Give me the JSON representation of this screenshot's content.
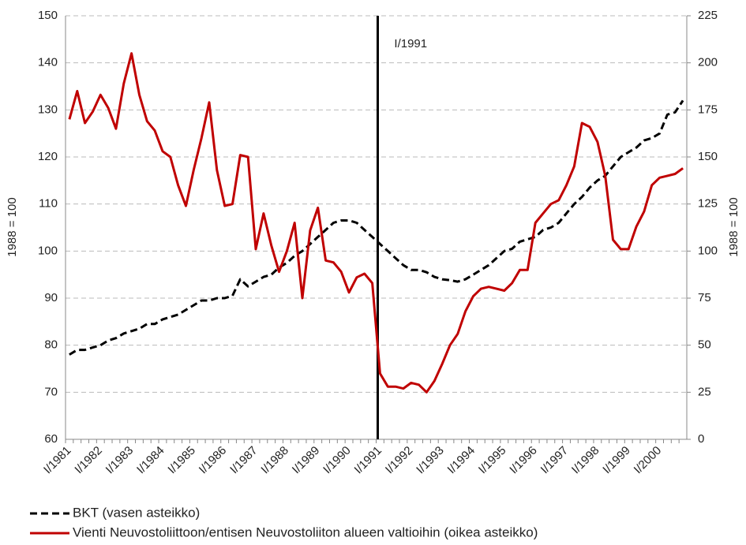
{
  "chart_data": {
    "type": "line",
    "y_label": "1988 = 100",
    "y2_label": "1988 = 100",
    "annotation": "I/1991",
    "categories": [
      "I/1981",
      null,
      null,
      null,
      "I/1982",
      null,
      null,
      null,
      "I/1983",
      null,
      null,
      null,
      "I/1984",
      null,
      null,
      null,
      "I/1985",
      null,
      null,
      null,
      "I/1986",
      null,
      null,
      null,
      "I/1987",
      null,
      null,
      null,
      "I/1988",
      null,
      null,
      null,
      "I/1989",
      null,
      null,
      null,
      "I/1990",
      null,
      null,
      null,
      "I/1991",
      null,
      null,
      null,
      "I/1992",
      null,
      null,
      null,
      "I/1993",
      null,
      null,
      null,
      "I/1994",
      null,
      null,
      null,
      "I/1995",
      null,
      null,
      null,
      "I/1996",
      null,
      null,
      null,
      "I/1997",
      null,
      null,
      null,
      "I/1998",
      null,
      null,
      null,
      "I/1999",
      null,
      null,
      null,
      "I/2000",
      null,
      null,
      null
    ],
    "series": [
      {
        "name": "BKT (vasen asteikko)",
        "color": "#000000",
        "dash": true,
        "axis": "y",
        "values": [
          78,
          79,
          79,
          79.5,
          80,
          81,
          81.5,
          82.5,
          83,
          83.5,
          84.5,
          84.5,
          85.5,
          86,
          86.5,
          87.5,
          88.5,
          89.5,
          89.5,
          90,
          90,
          90.5,
          94,
          92.5,
          93.5,
          94.5,
          95,
          96.5,
          97.5,
          99,
          100,
          101.5,
          103,
          104.5,
          106,
          106.5,
          106.5,
          106,
          104.5,
          103,
          101.5,
          100,
          98.5,
          97,
          96,
          96,
          95.5,
          94.5,
          94,
          93.8,
          93.5,
          94,
          95,
          96,
          97,
          98.5,
          100,
          100.5,
          102,
          102.5,
          103,
          104.5,
          105,
          106,
          108,
          110,
          111.5,
          113.5,
          115,
          116,
          118,
          120,
          121,
          122,
          123.5,
          124,
          125,
          129,
          129.5,
          132
        ]
      },
      {
        "name": "Vienti Neuvostoliittoon/entisen Neuvostoliiton alueen valtioihin (oikea asteikko)",
        "color": "#c00000",
        "dash": false,
        "axis": "y2",
        "values": [
          170,
          185,
          168,
          174,
          183,
          176,
          165,
          189,
          205,
          183,
          169,
          164,
          153,
          150,
          135,
          124,
          143,
          160,
          179,
          143,
          124,
          125,
          151,
          150,
          101,
          120,
          103,
          89,
          100,
          115,
          75,
          111,
          123,
          95,
          94,
          89,
          78,
          86,
          88,
          83,
          35,
          28,
          28,
          27,
          30,
          29,
          25,
          31,
          40,
          50,
          56,
          68,
          76,
          80,
          81,
          80,
          79,
          83,
          90,
          90,
          115,
          120,
          125,
          127,
          135,
          145,
          168,
          166,
          158,
          140,
          106,
          101,
          101,
          113,
          121,
          135,
          139,
          140,
          141,
          144
        ]
      }
    ],
    "ylim": [
      60,
      150
    ],
    "yticks": [
      60,
      70,
      80,
      90,
      100,
      110,
      120,
      130,
      140,
      150
    ],
    "y2lim": [
      0,
      225
    ],
    "y2ticks": [
      0,
      25,
      50,
      75,
      100,
      125,
      150,
      175,
      200,
      225
    ],
    "grid": true
  }
}
